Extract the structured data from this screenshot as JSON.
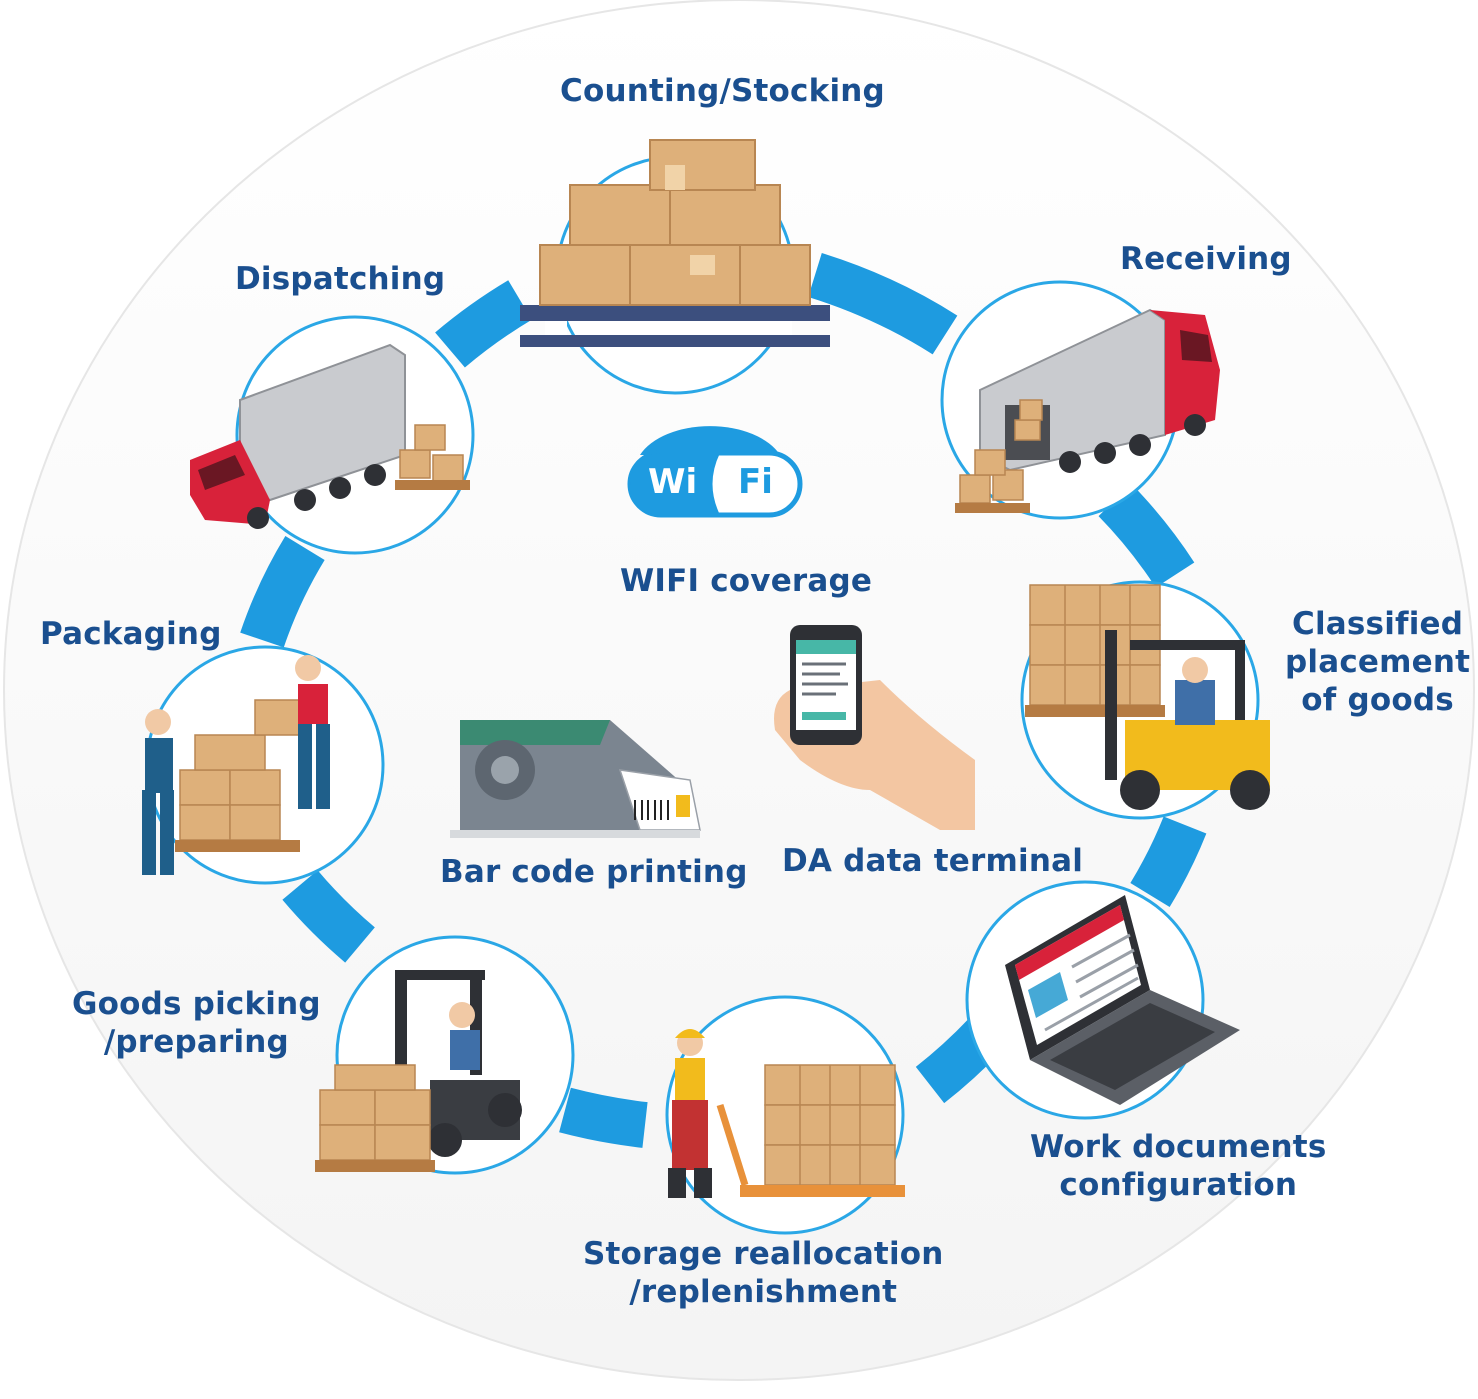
{
  "stages": {
    "counting": "Counting/Stocking",
    "receiving": "Receiving",
    "classified": [
      "Classified",
      "placement",
      "of goods"
    ],
    "work_docs": [
      "Work documents",
      "configuration"
    ],
    "storage": [
      "Storage reallocation",
      "/replenishment"
    ],
    "picking": [
      "Goods picking",
      "/preparing"
    ],
    "packaging": "Packaging",
    "dispatching": "Dispatching"
  },
  "center": {
    "wifi_left": "Wi",
    "wifi_right": "Fi",
    "wifi_caption": "WIFI coverage",
    "barcode_caption": "Bar code printing",
    "terminal_caption": "DA data terminal"
  },
  "colors": {
    "ring": "#1e9be0",
    "label": "#1a4f8f",
    "circle_outline": "#2aa7e6",
    "box": "#deb07a",
    "truck_red": "#d8223a",
    "forklift_yellow": "#f2bb1c"
  }
}
